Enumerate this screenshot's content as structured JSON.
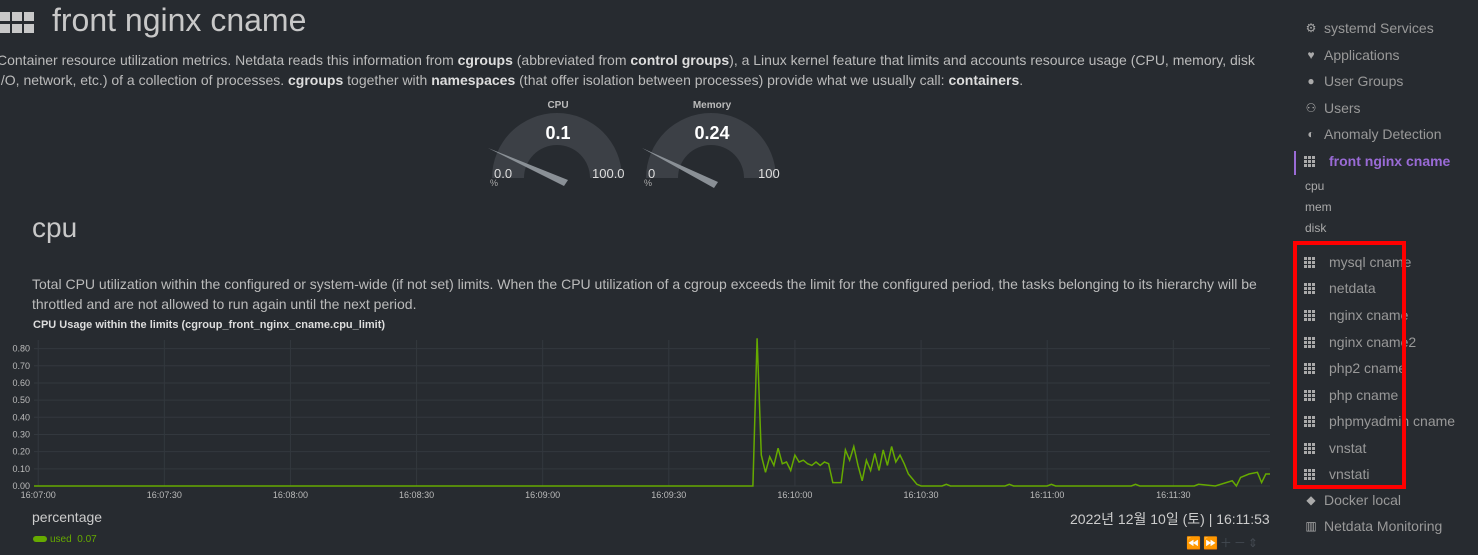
{
  "header": {
    "title": "front nginx cname",
    "intro_parts": [
      "Container resource utilization metrics. Netdata reads this information from ",
      "cgroups",
      " (abbreviated from ",
      "control groups",
      "), a Linux kernel feature that limits and accounts resource usage (CPU, memory, disk I/O, network, etc.) of a collection of processes. ",
      "cgroups",
      " together with ",
      "namespaces",
      " (that offer isolation between processes) provide what we usually call: ",
      "containers",
      "."
    ]
  },
  "gauges": [
    {
      "label": "CPU",
      "value": "0.1",
      "min": "0.0",
      "max": "100.0",
      "unit": "%",
      "fraction": 0.001
    },
    {
      "label": "Memory",
      "value": "0.24",
      "min": "0",
      "max": "100",
      "unit": "%",
      "fraction": 0.0024
    }
  ],
  "section": {
    "title": "cpu",
    "description": "Total CPU utilization within the configured or system-wide (if not set) limits. When the CPU utilization of a cgroup exceeds the limit for the configured period, the tasks belonging to its hierarchy will be throttled and are not allowed to run again until the next period."
  },
  "chart": {
    "title": "CPU Usage within the limits (cgroup_front_nginx_cname.cpu_limit)",
    "units": "percentage",
    "timestamp": "2022년 12월 10일 (토) | 16:11:53",
    "legend": {
      "name": "used",
      "value": "0.07"
    },
    "tools": "⏪⏩＋－⇕",
    "color": "#66aa00"
  },
  "chart_data": {
    "type": "line",
    "title": "CPU Usage within the limits (cgroup_front_nginx_cname.cpu_limit)",
    "ylabel": "percentage",
    "ylim": [
      0,
      0.85
    ],
    "yticks": [
      "0.00",
      "0.10",
      "0.20",
      "0.30",
      "0.40",
      "0.50",
      "0.60",
      "0.70",
      "0.80"
    ],
    "xticks": [
      "16:07:00",
      "16:07:30",
      "16:08:00",
      "16:08:30",
      "16:09:00",
      "16:09:30",
      "16:10:00",
      "16:10:30",
      "16:11:00",
      "16:11:30"
    ],
    "series": [
      {
        "name": "used",
        "x": [
          "16:06:59",
          "16:09:50",
          "16:09:51",
          "16:09:52",
          "16:09:53",
          "16:09:54",
          "16:09:55",
          "16:09:56",
          "16:09:57",
          "16:09:58",
          "16:09:59",
          "16:10:00",
          "16:10:01",
          "16:10:02",
          "16:10:03",
          "16:10:04",
          "16:10:05",
          "16:10:06",
          "16:10:07",
          "16:10:08",
          "16:10:09",
          "16:10:10",
          "16:10:11",
          "16:10:12",
          "16:10:13",
          "16:10:14",
          "16:10:15",
          "16:10:16",
          "16:10:17",
          "16:10:18",
          "16:10:19",
          "16:10:20",
          "16:10:21",
          "16:10:22",
          "16:10:23",
          "16:10:24",
          "16:10:25",
          "16:10:26",
          "16:10:27",
          "16:10:28",
          "16:10:29",
          "16:10:30",
          "16:10:35",
          "16:10:36",
          "16:10:37",
          "16:10:50",
          "16:10:51",
          "16:10:52",
          "16:11:00",
          "16:11:01",
          "16:11:02",
          "16:11:20",
          "16:11:21",
          "16:11:22",
          "16:11:35",
          "16:11:36",
          "16:11:40",
          "16:11:44",
          "16:11:45",
          "16:11:46",
          "16:11:48",
          "16:11:50",
          "16:11:51",
          "16:11:52",
          "16:11:53"
        ],
        "values": [
          0.0,
          0.0,
          0.86,
          0.18,
          0.08,
          0.17,
          0.12,
          0.22,
          0.13,
          0.14,
          0.09,
          0.18,
          0.14,
          0.15,
          0.13,
          0.12,
          0.14,
          0.12,
          0.14,
          0.13,
          0.02,
          0.02,
          0.02,
          0.21,
          0.15,
          0.23,
          0.12,
          0.03,
          0.15,
          0.09,
          0.19,
          0.09,
          0.21,
          0.12,
          0.23,
          0.14,
          0.18,
          0.13,
          0.07,
          0.04,
          0.01,
          0.0,
          0.0,
          0.01,
          0.0,
          0.0,
          0.01,
          0.0,
          0.0,
          0.01,
          0.0,
          0.0,
          0.01,
          0.0,
          0.0,
          0.01,
          0.0,
          0.03,
          0.0,
          0.05,
          0.07,
          0.08,
          0.02,
          0.07,
          0.07
        ]
      }
    ]
  },
  "sidebar": {
    "items_top": [
      {
        "label": "systemd Services",
        "icon": "gears-icon"
      },
      {
        "label": "Applications",
        "icon": "heartbeat-icon"
      },
      {
        "label": "User Groups",
        "icon": "user-icon"
      },
      {
        "label": "Users",
        "icon": "users-icon"
      },
      {
        "label": "Anomaly Detection",
        "icon": "brain-icon"
      }
    ],
    "active": {
      "label": "front nginx cname",
      "icon": "grid-icon"
    },
    "subs": [
      "cpu",
      "mem",
      "disk"
    ],
    "containers": [
      {
        "label": "mysql cname"
      },
      {
        "label": "netdata"
      },
      {
        "label": "nginx cname"
      },
      {
        "label": "nginx cname2"
      },
      {
        "label": "php2 cname"
      },
      {
        "label": "php cname"
      },
      {
        "label": "phpmyadmin cname"
      },
      {
        "label": "vnstat"
      },
      {
        "label": "vnstati"
      }
    ],
    "items_bottom": [
      {
        "label": "Docker local",
        "icon": "cube-icon"
      },
      {
        "label": "Netdata Monitoring",
        "icon": "bar-chart-icon"
      }
    ]
  }
}
